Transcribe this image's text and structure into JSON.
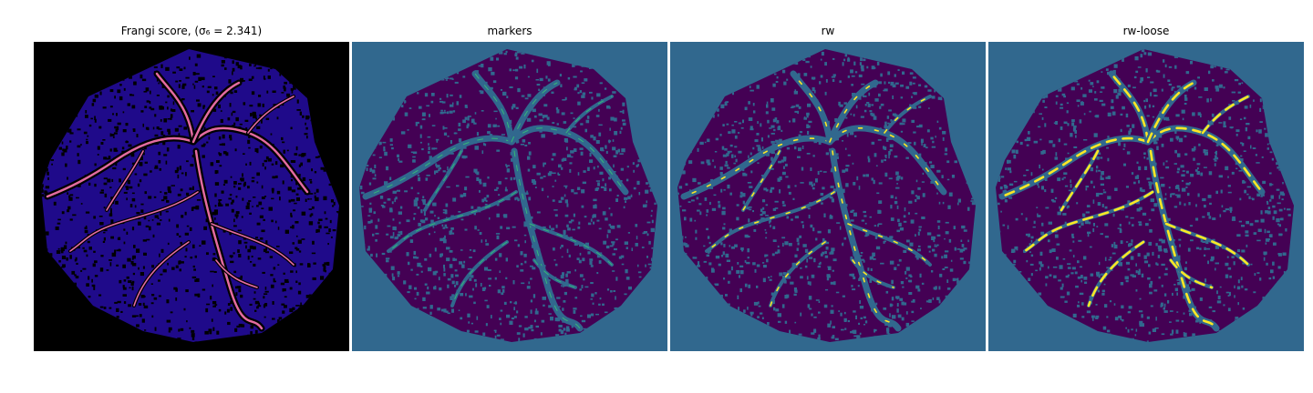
{
  "panels": [
    {
      "title": "Frangi score, (σ₆ = 2.341)",
      "background": "#000000",
      "tissue": "#1f0a8a",
      "vessel": "#e36ba1"
    },
    {
      "title": "markers",
      "background": "#31688e",
      "tissue": "#440154",
      "vessel": "#35b779"
    },
    {
      "title": "rw",
      "background": "#31688e",
      "tissue": "#440154",
      "vessel": "#fde725"
    },
    {
      "title": "rw-loose",
      "background": "#31688e",
      "tissue": "#440154",
      "vessel": "#fde725"
    }
  ]
}
